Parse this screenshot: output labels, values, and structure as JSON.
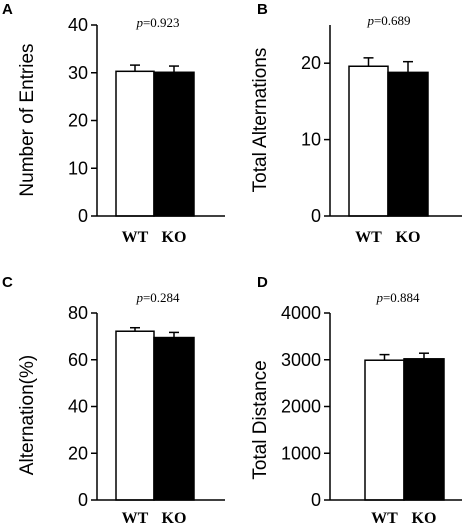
{
  "chart_data": [
    {
      "type": "bar",
      "panel": "A",
      "annotation": "p=0.923",
      "ylabel": "Number of Entries",
      "categories": [
        "WT",
        "KO"
      ],
      "values": [
        30.3,
        30.1
      ],
      "errors": [
        1.3,
        1.3
      ],
      "bar_colors": [
        "#ffffff",
        "#000000"
      ],
      "ylim": [
        0,
        40
      ],
      "yticks": [
        0,
        10,
        20,
        30,
        40
      ],
      "yticklabels": [
        "0",
        "10",
        "20",
        "30",
        "40"
      ],
      "grid": false
    },
    {
      "type": "bar",
      "panel": "B",
      "annotation": "p=0.689",
      "ylabel": "Total Alternations",
      "categories": [
        "WT",
        "KO"
      ],
      "values": [
        19.6,
        18.8
      ],
      "errors": [
        1.1,
        1.4
      ],
      "bar_colors": [
        "#ffffff",
        "#000000"
      ],
      "ylim": [
        0,
        25
      ],
      "yticks": [
        0,
        10,
        20
      ],
      "yticklabels": [
        "0",
        "10",
        "20"
      ],
      "grid": false
    },
    {
      "type": "bar",
      "panel": "C",
      "annotation": "p=0.284",
      "ylabel": "Alternation(%)",
      "categories": [
        "WT",
        "KO"
      ],
      "values": [
        72.2,
        69.5
      ],
      "errors": [
        1.5,
        2.2
      ],
      "bar_colors": [
        "#ffffff",
        "#000000"
      ],
      "ylim": [
        0,
        80
      ],
      "yticks": [
        0,
        20,
        40,
        60,
        80
      ],
      "yticklabels": [
        "0",
        "20",
        "40",
        "60",
        "80"
      ],
      "grid": false
    },
    {
      "type": "bar",
      "panel": "D",
      "annotation": "p=0.884",
      "ylabel": "Total Distance",
      "categories": [
        "WT",
        "KO"
      ],
      "values": [
        2990,
        3020
      ],
      "errors": [
        120,
        120
      ],
      "bar_colors": [
        "#ffffff",
        "#000000"
      ],
      "ylim": [
        0,
        4000
      ],
      "yticks": [
        0,
        1000,
        2000,
        3000,
        4000
      ],
      "yticklabels": [
        "0",
        "1000",
        "2000",
        "3000",
        "4000"
      ],
      "grid": false
    }
  ]
}
